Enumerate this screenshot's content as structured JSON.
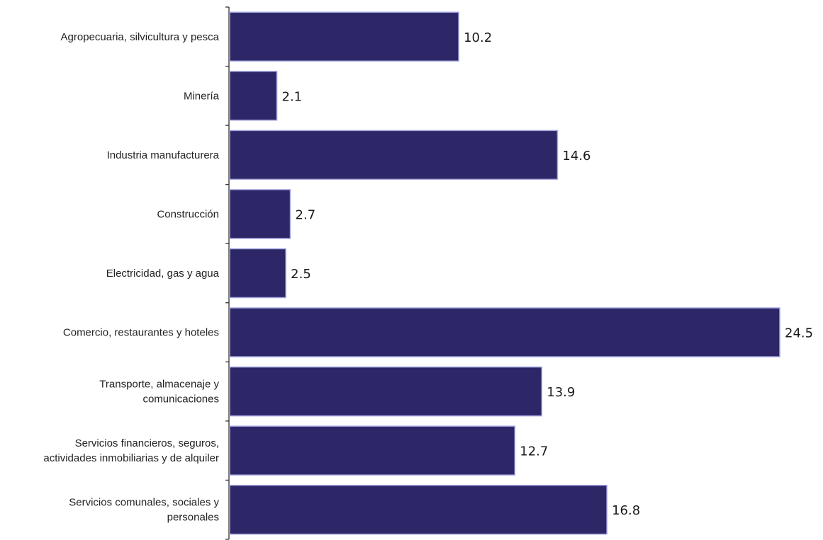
{
  "chart_data": {
    "type": "bar",
    "orientation": "horizontal",
    "title": "",
    "xlabel": "",
    "ylabel": "",
    "categories": [
      [
        "Agropecuaria, silvicultura y pesca"
      ],
      [
        "Minería"
      ],
      [
        "Industria manufacturera"
      ],
      [
        "Construcción"
      ],
      [
        "Electricidad, gas y agua"
      ],
      [
        "Comercio, restaurantes y hoteles"
      ],
      [
        "Transporte, almacenaje y",
        "comunicaciones"
      ],
      [
        "Servicios financieros, seguros,",
        "actividades inmobiliarias y de alquiler"
      ],
      [
        "Servicios comunales, sociales y",
        "personales"
      ]
    ],
    "values": [
      10.2,
      2.1,
      14.6,
      2.7,
      2.5,
      24.5,
      13.9,
      12.7,
      16.8
    ],
    "value_labels": [
      "10.2",
      "2.1",
      "14.6",
      "2.7",
      "2.5",
      "24.5",
      "13.9",
      "12.7",
      "16.8"
    ],
    "xlim": [
      0,
      24.5
    ],
    "grid": false,
    "legend": "none",
    "colors": {
      "bar_fill": "#2d2767",
      "bar_edge": "#a4a7e0",
      "axis": "#333333",
      "text": "#222222"
    }
  }
}
